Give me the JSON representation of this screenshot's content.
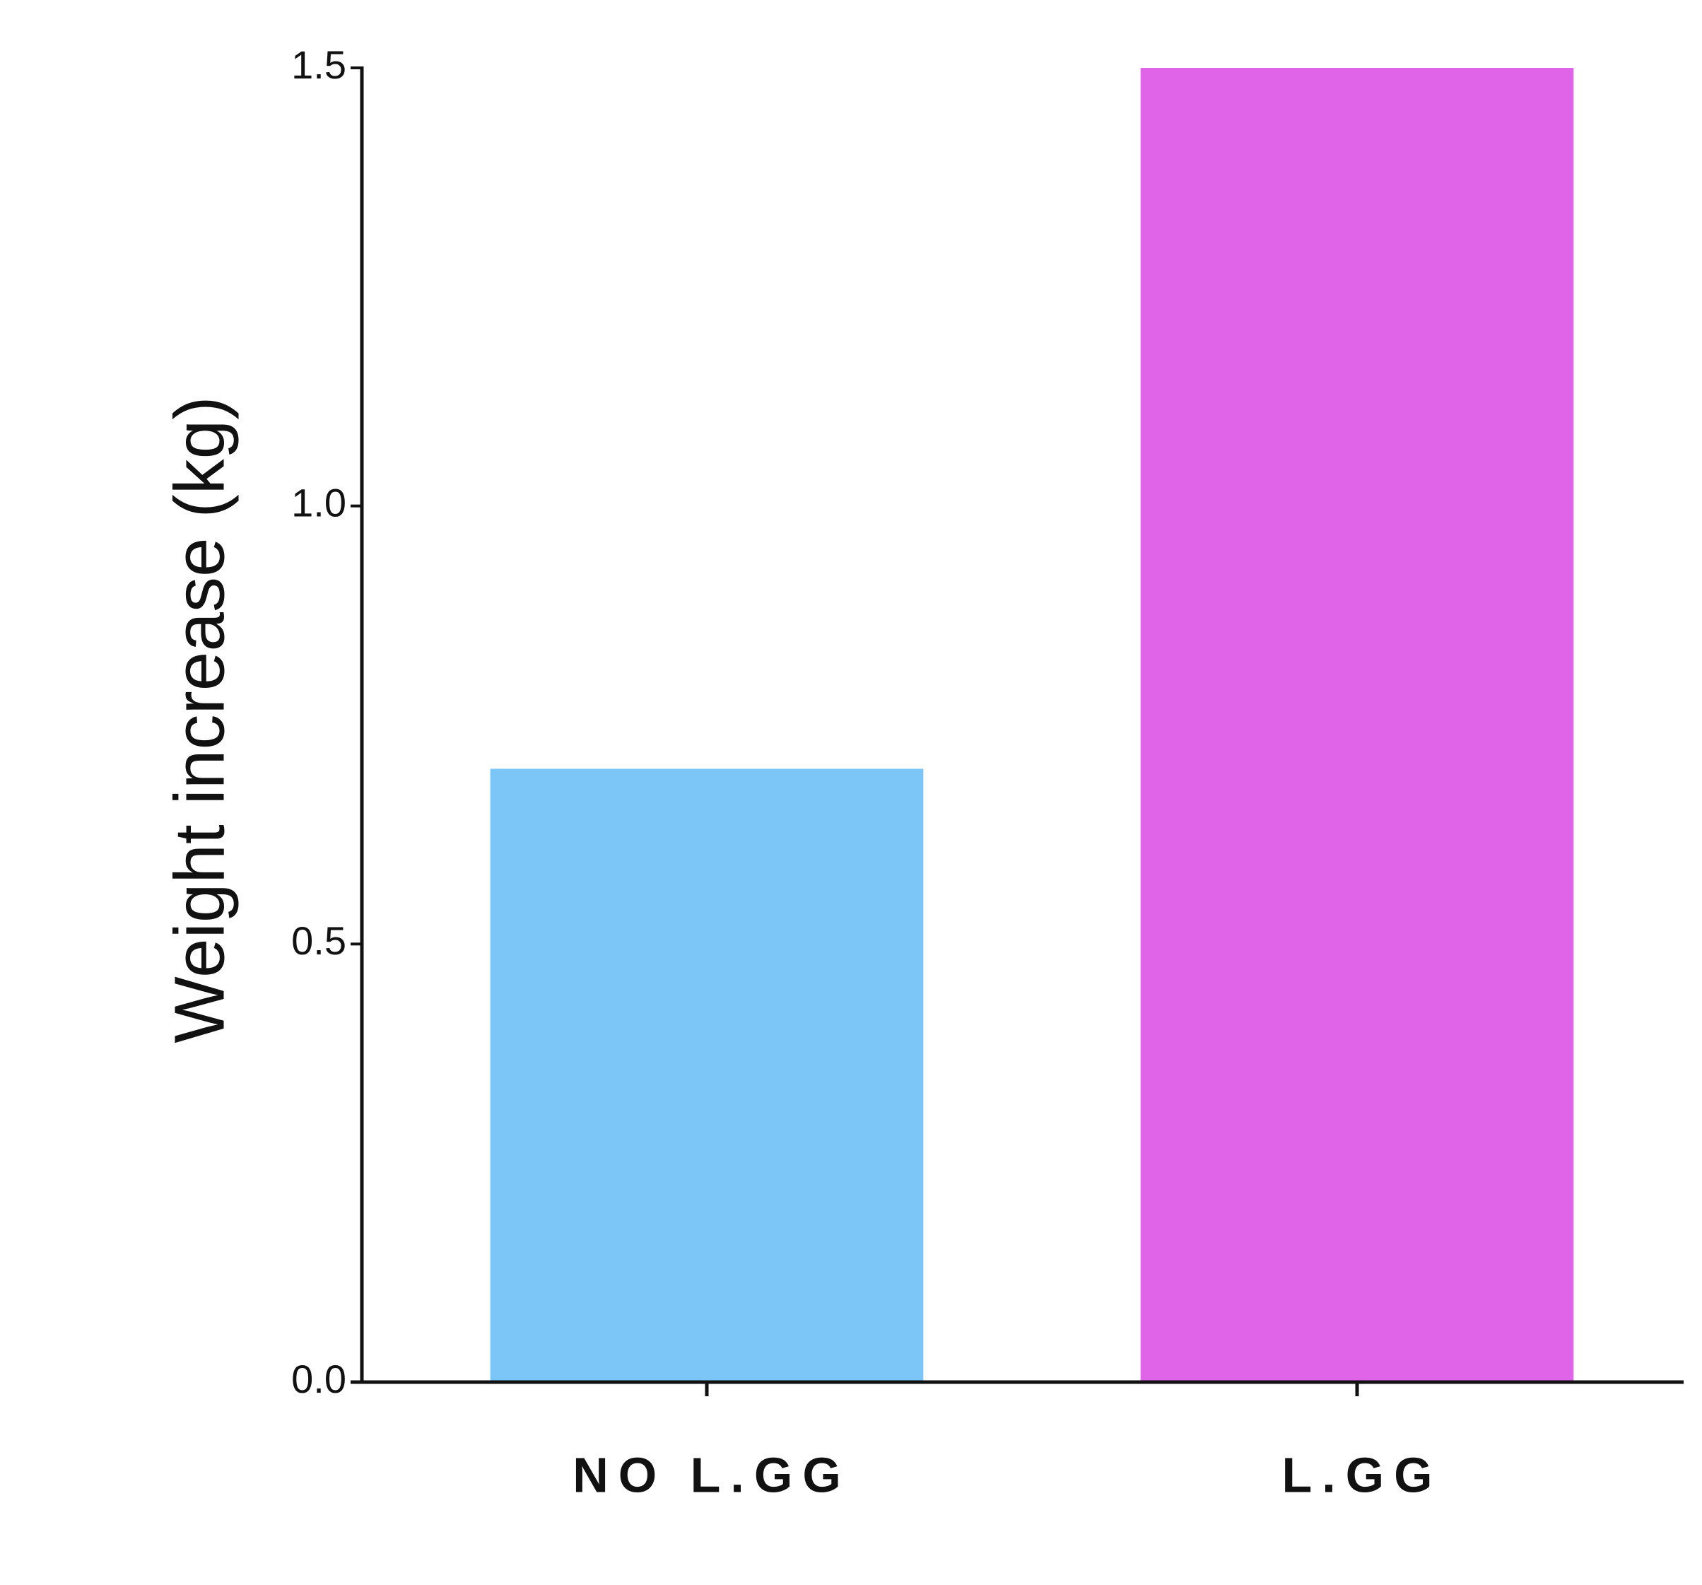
{
  "chart_data": {
    "type": "bar",
    "y_label": "Weight increase (kg)",
    "categories": [
      "NO L.GG",
      "L.GG"
    ],
    "values": [
      0.7,
      1.5
    ],
    "colors": [
      "#7bc5f7",
      "#df64e8"
    ],
    "ylim": [
      0,
      1.5
    ],
    "yticks": [
      {
        "value": 0,
        "label": "0.0"
      },
      0.5,
      {
        "value": 1,
        "label": "1.0"
      },
      1.5
    ],
    "grid": false
  }
}
